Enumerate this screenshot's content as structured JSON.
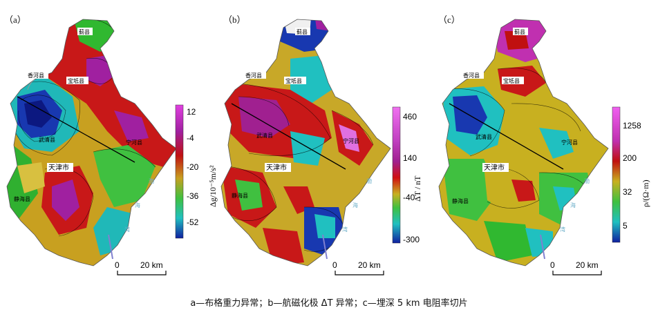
{
  "panels": {
    "a": {
      "label": "（a）",
      "unit": "Δg/10⁻⁵m/s²",
      "ticks": [
        "12",
        "-4",
        "-20",
        "-36",
        "-52"
      ],
      "colorbar": [
        "#e040e0",
        "#a020a0",
        "#c01010",
        "#c8a020",
        "#40c040",
        "#20c0c0",
        "#1020a0"
      ]
    },
    "b": {
      "label": "（b）",
      "unit": "ΔT / nT",
      "ticks": [
        "460",
        "140",
        "-40",
        "-300"
      ],
      "colorbar": [
        "#f070f0",
        "#c040c0",
        "#a02090",
        "#d01010",
        "#c8b020",
        "#40c040",
        "#20c0c0",
        "#1020a0"
      ]
    },
    "c": {
      "label": "（c）",
      "unit": "ρ/(Ω·m)",
      "ticks": [
        "1258",
        "200",
        "32",
        "5"
      ],
      "colorbar": [
        "#f060f0",
        "#c030b0",
        "#c01010",
        "#c8b020",
        "#40c040",
        "#20c0c0",
        "#1020a0"
      ]
    }
  },
  "places": {
    "jixian": "蓟县",
    "xianghe": "香河县",
    "baodi": "宝坻县",
    "wuqing": "武清县",
    "ninghe": "宁河县",
    "tianjin": "天津市",
    "jinghai": "静海县"
  },
  "sea": {
    "hai": "渤",
    "hai2": "海",
    "wan": "湾"
  },
  "scale": {
    "zero": "0",
    "dist": "20 km"
  },
  "caption": "a—布格重力异常；b—航磁化极 ΔT 异常；c—埋深 5 km 电阻率切片"
}
